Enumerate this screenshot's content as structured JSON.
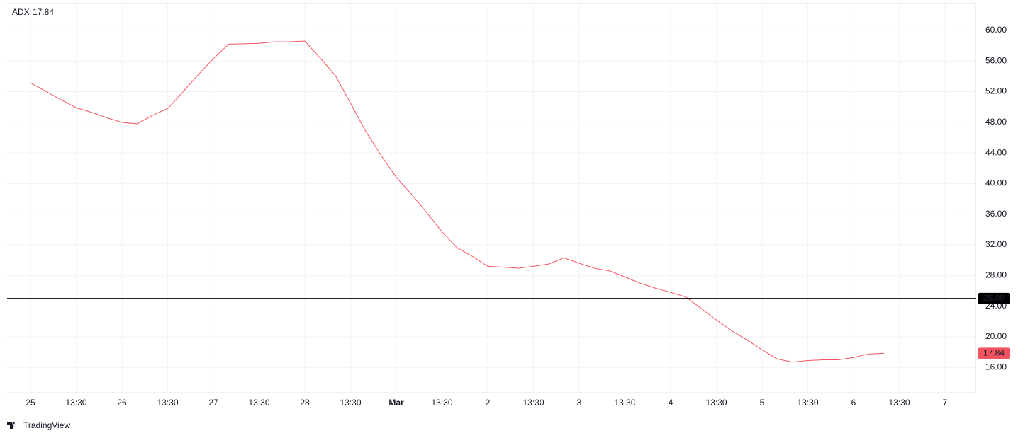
{
  "chart_data": {
    "type": "line",
    "categories": [
      "25",
      null,
      null,
      "13:30",
      null,
      null,
      "26",
      null,
      null,
      "13:30",
      null,
      null,
      "27",
      null,
      null,
      "13:30",
      null,
      null,
      "28",
      null,
      null,
      "13:30",
      null,
      null,
      "Mar",
      null,
      null,
      "13:30",
      null,
      null,
      "2",
      null,
      null,
      "13:30",
      null,
      null,
      "3",
      null,
      null,
      "13:30",
      null,
      null,
      "4",
      null,
      null,
      "13:30",
      null,
      null,
      "5",
      null,
      null,
      "13:30",
      null,
      null,
      "6",
      null,
      null,
      "13:30",
      null,
      null,
      "7"
    ],
    "series": [
      {
        "name": "ADX",
        "color": "#f7525f",
        "values": [
          53.16,
          52.05,
          50.94,
          49.9,
          49.3,
          48.6,
          47.98,
          47.8,
          48.9,
          49.8,
          51.96,
          54.2,
          56.3,
          58.2,
          58.25,
          58.3,
          58.5,
          58.5,
          58.6,
          56.4,
          54.1,
          50.5,
          46.8,
          43.7,
          40.8,
          38.6,
          36.2,
          33.7,
          31.6,
          30.5,
          29.2,
          29.1,
          28.95,
          29.2,
          29.5,
          30.3,
          29.6,
          28.95,
          28.6,
          27.8,
          27.0,
          26.35,
          25.8,
          25.2,
          23.7,
          22.2,
          20.8,
          19.6,
          18.3,
          17.1,
          16.7,
          16.9,
          17.0,
          17.0,
          17.3,
          17.75,
          17.84,
          null,
          null,
          null,
          null
        ]
      }
    ],
    "ylim": [
      12.7,
      63.5
    ],
    "yticks": [
      {
        "value": 16,
        "label": "16.00"
      },
      {
        "value": 20,
        "label": "20.00"
      },
      {
        "value": 24,
        "label": "24.00"
      },
      {
        "value": 28,
        "label": "28.00"
      },
      {
        "value": 32,
        "label": "32.00"
      },
      {
        "value": 36,
        "label": "36.00"
      },
      {
        "value": 40,
        "label": "40.00"
      },
      {
        "value": 44,
        "label": "44.00"
      },
      {
        "value": 48,
        "label": "48.00"
      },
      {
        "value": 52,
        "label": "52.00"
      },
      {
        "value": 56,
        "label": "56.00"
      },
      {
        "value": 60,
        "label": "60.00"
      }
    ],
    "hline": {
      "value": 25,
      "label": "25.00",
      "color": "#000000"
    },
    "grid": true,
    "watermark": "TradingView"
  }
}
